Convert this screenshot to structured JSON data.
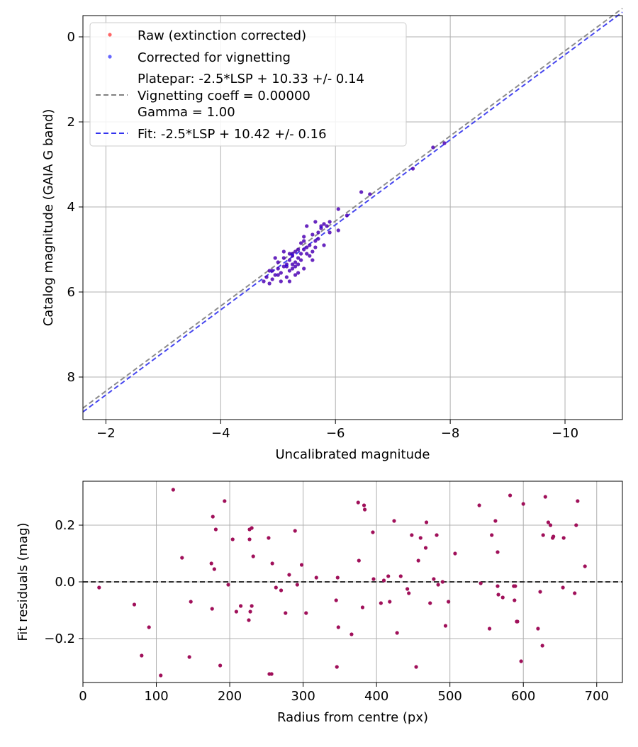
{
  "colors": {
    "raw": "#ff0000",
    "corrected": "#0000ff",
    "residual": "#a0105a",
    "platepar_line": "#808080",
    "fit_line": "#3333ee",
    "grid": "#b0b0b0",
    "zero_line": "#333333"
  },
  "chart_data": [
    {
      "type": "scatter",
      "xlabel": "Uncalibrated magnitude",
      "ylabel": "Catalog magnitude (GAIA G band)",
      "xlim": [
        -1.6,
        -11.0
      ],
      "ylim": [
        9.0,
        -0.5
      ],
      "xticks": [
        -2,
        -4,
        -6,
        -8,
        -10
      ],
      "xtick_labels": [
        "−2",
        "−4",
        "−6",
        "−8",
        "−10"
      ],
      "yticks": [
        0,
        2,
        4,
        6,
        8
      ],
      "ytick_labels": [
        "0",
        "2",
        "4",
        "6",
        "8"
      ],
      "grid": true,
      "legend_position": "top-left",
      "legend": {
        "raw": "Raw (extinction corrected)",
        "corrected": "Corrected for vignetting",
        "platepar_lines": [
          "Platepar: -2.5*LSP + 10.33 +/- 0.14",
          "Vignetting coeff = 0.00000",
          "Gamma = 1.00"
        ],
        "fit": "Fit: -2.5*LSP + 10.42 +/- 0.16"
      },
      "lines": [
        {
          "name": "Platepar",
          "intercept": 10.33,
          "slope_factor": -2.5,
          "style": "dashed"
        },
        {
          "name": "Fit",
          "intercept": 10.42,
          "slope_factor": -2.5,
          "style": "dashed"
        }
      ],
      "points": [
        [
          -7.35,
          3.1
        ],
        [
          -7.7,
          2.6
        ],
        [
          -7.9,
          2.5
        ],
        [
          -6.45,
          3.65
        ],
        [
          -6.6,
          3.7
        ],
        [
          -6.05,
          4.05
        ],
        [
          -6.2,
          4.2
        ],
        [
          -6.05,
          4.55
        ],
        [
          -5.8,
          4.4
        ],
        [
          -5.9,
          4.6
        ],
        [
          -5.75,
          4.45
        ],
        [
          -5.65,
          4.35
        ],
        [
          -5.8,
          4.9
        ],
        [
          -5.5,
          4.45
        ],
        [
          -5.45,
          4.7
        ],
        [
          -5.6,
          4.65
        ],
        [
          -5.5,
          4.95
        ],
        [
          -5.65,
          4.8
        ],
        [
          -5.4,
          4.85
        ],
        [
          -5.35,
          5.0
        ],
        [
          -5.5,
          5.1
        ],
        [
          -5.3,
          5.05
        ],
        [
          -5.25,
          5.15
        ],
        [
          -5.2,
          5.25
        ],
        [
          -5.3,
          5.3
        ],
        [
          -5.15,
          5.35
        ],
        [
          -5.1,
          5.4
        ],
        [
          -5.0,
          5.45
        ],
        [
          -5.05,
          5.55
        ],
        [
          -4.95,
          5.6
        ],
        [
          -4.9,
          5.7
        ],
        [
          -4.8,
          5.65
        ],
        [
          -4.85,
          5.8
        ],
        [
          -5.15,
          5.65
        ],
        [
          -5.2,
          5.5
        ],
        [
          -5.25,
          5.45
        ],
        [
          -5.35,
          5.35
        ],
        [
          -5.4,
          5.25
        ],
        [
          -5.45,
          5.45
        ],
        [
          -5.6,
          5.25
        ],
        [
          -5.35,
          5.2
        ],
        [
          -5.2,
          5.1
        ],
        [
          -5.1,
          5.2
        ],
        [
          -5.0,
          5.3
        ],
        [
          -4.9,
          5.5
        ],
        [
          -4.95,
          5.2
        ],
        [
          -5.05,
          5.75
        ],
        [
          -5.15,
          5.4
        ],
        [
          -5.25,
          5.35
        ],
        [
          -5.3,
          5.6
        ],
        [
          -5.4,
          5.1
        ],
        [
          -5.45,
          5.0
        ],
        [
          -5.55,
          4.9
        ],
        [
          -5.7,
          4.75
        ],
        [
          -5.75,
          4.5
        ],
        [
          -5.85,
          4.45
        ],
        [
          -5.9,
          4.35
        ],
        [
          -5.6,
          5.05
        ],
        [
          -5.55,
          5.15
        ],
        [
          -5.1,
          5.05
        ],
        [
          -5.2,
          5.75
        ],
        [
          -5.0,
          5.6
        ],
        [
          -5.3,
          5.4
        ],
        [
          -5.35,
          5.55
        ],
        [
          -4.85,
          5.5
        ],
        [
          -4.75,
          5.75
        ],
        [
          -5.65,
          4.95
        ],
        [
          -5.7,
          4.6
        ],
        [
          -5.45,
          4.8
        ],
        [
          -5.25,
          5.1
        ]
      ]
    },
    {
      "type": "scatter",
      "xlabel": "Radius from centre (px)",
      "ylabel": "Fit residuals (mag)",
      "xlim": [
        0,
        735
      ],
      "ylim": [
        -0.355,
        0.355
      ],
      "xticks": [
        0,
        100,
        200,
        300,
        400,
        500,
        600,
        700
      ],
      "xtick_labels": [
        "0",
        "100",
        "200",
        "300",
        "400",
        "500",
        "600",
        "700"
      ],
      "yticks": [
        -0.2,
        0.0,
        0.2
      ],
      "ytick_labels": [
        "−0.2",
        "0.0",
        "0.2"
      ],
      "grid": true,
      "reference_line": 0.0,
      "points": [
        [
          22,
          -0.02
        ],
        [
          70,
          -0.08
        ],
        [
          80,
          -0.26
        ],
        [
          90,
          -0.16
        ],
        [
          106,
          -0.33
        ],
        [
          123,
          0.325
        ],
        [
          135,
          0.085
        ],
        [
          145,
          -0.265
        ],
        [
          147,
          -0.07
        ],
        [
          175,
          0.065
        ],
        [
          176,
          -0.095
        ],
        [
          177,
          0.23
        ],
        [
          179,
          0.045
        ],
        [
          181,
          0.185
        ],
        [
          187,
          -0.295
        ],
        [
          193,
          0.285
        ],
        [
          198,
          -0.01
        ],
        [
          204,
          0.15
        ],
        [
          209,
          -0.105
        ],
        [
          215,
          -0.085
        ],
        [
          226,
          -0.135
        ],
        [
          227,
          0.185
        ],
        [
          227,
          0.15
        ],
        [
          228,
          -0.105
        ],
        [
          230,
          0.19
        ],
        [
          230,
          -0.085
        ],
        [
          232,
          0.09
        ],
        [
          253,
          0.155
        ],
        [
          254,
          -0.325
        ],
        [
          257,
          -0.325
        ],
        [
          258,
          0.065
        ],
        [
          263,
          -0.02
        ],
        [
          270,
          -0.03
        ],
        [
          276,
          -0.11
        ],
        [
          281,
          0.025
        ],
        [
          289,
          0.18
        ],
        [
          292,
          -0.01
        ],
        [
          298,
          0.06
        ],
        [
          304,
          -0.11
        ],
        [
          318,
          0.015
        ],
        [
          345,
          -0.065
        ],
        [
          346,
          -0.3
        ],
        [
          347,
          0.015
        ],
        [
          348,
          -0.16
        ],
        [
          366,
          -0.185
        ],
        [
          375,
          0.28
        ],
        [
          376,
          0.075
        ],
        [
          381,
          -0.09
        ],
        [
          383,
          0.27
        ],
        [
          384,
          0.255
        ],
        [
          395,
          0.175
        ],
        [
          396,
          0.01
        ],
        [
          406,
          -0.075
        ],
        [
          410,
          0.005
        ],
        [
          416,
          0.02
        ],
        [
          418,
          -0.07
        ],
        [
          424,
          0.215
        ],
        [
          428,
          -0.18
        ],
        [
          433,
          0.02
        ],
        [
          442,
          -0.025
        ],
        [
          444,
          -0.04
        ],
        [
          448,
          0.165
        ],
        [
          454,
          -0.3
        ],
        [
          457,
          0.075
        ],
        [
          460,
          0.155
        ],
        [
          467,
          0.12
        ],
        [
          468,
          0.21
        ],
        [
          473,
          -0.075
        ],
        [
          478,
          0.01
        ],
        [
          482,
          0.165
        ],
        [
          484,
          -0.01
        ],
        [
          490,
          0.0
        ],
        [
          494,
          -0.155
        ],
        [
          498,
          -0.07
        ],
        [
          507,
          0.1
        ],
        [
          540,
          0.27
        ],
        [
          542,
          -0.005
        ],
        [
          554,
          -0.165
        ],
        [
          557,
          0.165
        ],
        [
          562,
          0.215
        ],
        [
          565,
          0.105
        ],
        [
          565,
          -0.015
        ],
        [
          566,
          -0.045
        ],
        [
          572,
          -0.055
        ],
        [
          582,
          0.305
        ],
        [
          587,
          -0.015
        ],
        [
          588,
          -0.065
        ],
        [
          589,
          -0.015
        ],
        [
          591,
          -0.14
        ],
        [
          592,
          -0.14
        ],
        [
          597,
          -0.28
        ],
        [
          600,
          0.275
        ],
        [
          620,
          -0.165
        ],
        [
          623,
          -0.035
        ],
        [
          626,
          -0.225
        ],
        [
          627,
          0.165
        ],
        [
          630,
          0.3
        ],
        [
          634,
          0.21
        ],
        [
          637,
          0.2
        ],
        [
          640,
          0.155
        ],
        [
          641,
          0.16
        ],
        [
          655,
          0.155
        ],
        [
          654,
          -0.02
        ],
        [
          670,
          -0.04
        ],
        [
          672,
          0.2
        ],
        [
          674,
          0.285
        ],
        [
          684,
          0.055
        ]
      ]
    }
  ]
}
